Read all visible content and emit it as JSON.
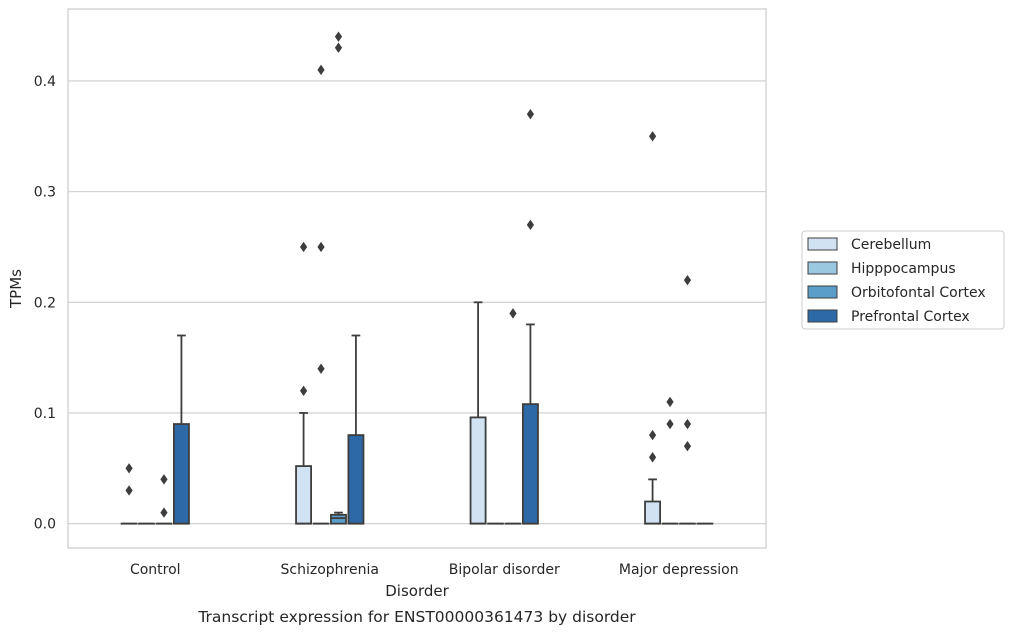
{
  "chart_data": {
    "type": "box",
    "caption": "Transcript expression for ENST00000361473 by disorder",
    "xlabel": "Disorder",
    "ylabel": "TPMs",
    "ylim": [
      -0.022,
      0.465
    ],
    "yticks": [
      0.0,
      0.1,
      0.2,
      0.3,
      0.4
    ],
    "ytick_labels": [
      "0.0",
      "0.1",
      "0.2",
      "0.3",
      "0.4"
    ],
    "grid": "horizontal",
    "legend_position": "right",
    "categories": [
      "Control",
      "Schizophrenia",
      "Bipolar disorder",
      "Major depression"
    ],
    "series": [
      {
        "name": "Cerebellum",
        "color": "#d1e2f2",
        "boxes": [
          {
            "q1": 0,
            "median": 0,
            "q3": 0,
            "whisker_low": 0,
            "whisker_high": 0,
            "outliers": [
              0.03,
              0.05
            ]
          },
          {
            "q1": 0,
            "median": 0,
            "q3": 0.052,
            "whisker_low": 0,
            "whisker_high": 0.1,
            "outliers": [
              0.12,
              0.25
            ]
          },
          {
            "q1": 0,
            "median": 0,
            "q3": 0.096,
            "whisker_low": 0,
            "whisker_high": 0.2,
            "outliers": []
          },
          {
            "q1": 0,
            "median": 0,
            "q3": 0.02,
            "whisker_low": 0,
            "whisker_high": 0.04,
            "outliers": [
              0.06,
              0.08,
              0.35
            ]
          }
        ]
      },
      {
        "name": "Hipppocampus",
        "color": "#9ac8e0",
        "boxes": [
          {
            "q1": 0,
            "median": 0,
            "q3": 0,
            "whisker_low": 0,
            "whisker_high": 0,
            "outliers": []
          },
          {
            "q1": 0,
            "median": 0,
            "q3": 0,
            "whisker_low": 0,
            "whisker_high": 0,
            "outliers": [
              0.14,
              0.25,
              0.41
            ]
          },
          {
            "q1": 0,
            "median": 0,
            "q3": 0,
            "whisker_low": 0,
            "whisker_high": 0,
            "outliers": []
          },
          {
            "q1": 0,
            "median": 0,
            "q3": 0,
            "whisker_low": 0,
            "whisker_high": 0,
            "outliers": [
              0.09,
              0.11
            ]
          }
        ]
      },
      {
        "name": "Orbitofontal Cortex",
        "color": "#5a9ec9",
        "boxes": [
          {
            "q1": 0,
            "median": 0,
            "q3": 0,
            "whisker_low": 0,
            "whisker_high": 0,
            "outliers": [
              0.01,
              0.04
            ]
          },
          {
            "q1": 0,
            "median": 0.005,
            "q3": 0.008,
            "whisker_low": 0,
            "whisker_high": 0.01,
            "outliers": [
              0.43,
              0.44
            ]
          },
          {
            "q1": 0,
            "median": 0,
            "q3": 0,
            "whisker_low": 0,
            "whisker_high": 0,
            "outliers": [
              0.19
            ]
          },
          {
            "q1": 0,
            "median": 0,
            "q3": 0,
            "whisker_low": 0,
            "whisker_high": 0,
            "outliers": [
              0.07,
              0.09,
              0.22
            ]
          }
        ]
      },
      {
        "name": "Prefrontal Cortex",
        "color": "#2d69a6",
        "boxes": [
          {
            "q1": 0,
            "median": 0,
            "q3": 0.09,
            "whisker_low": 0,
            "whisker_high": 0.17,
            "outliers": []
          },
          {
            "q1": 0,
            "median": 0,
            "q3": 0.08,
            "whisker_low": 0,
            "whisker_high": 0.17,
            "outliers": []
          },
          {
            "q1": 0,
            "median": 0,
            "q3": 0.108,
            "whisker_low": 0,
            "whisker_high": 0.18,
            "outliers": [
              0.27,
              0.37
            ]
          },
          {
            "q1": 0,
            "median": 0,
            "q3": 0,
            "whisker_low": 0,
            "whisker_high": 0,
            "outliers": []
          }
        ]
      }
    ]
  }
}
